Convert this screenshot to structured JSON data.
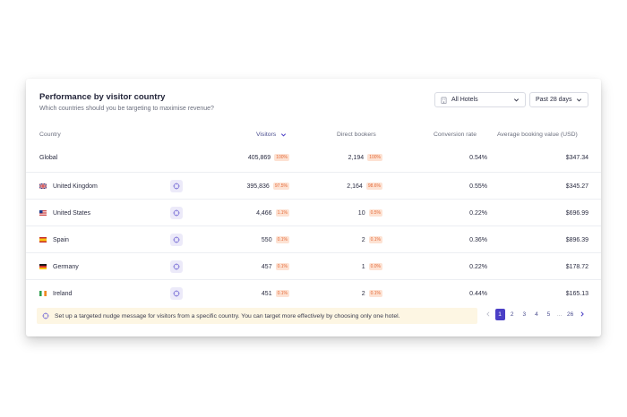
{
  "header": {
    "title": "Performance by visitor country",
    "subtitle": "Which countries should you be targeting to maximise revenue?"
  },
  "filters": {
    "hotel": "All Hotels",
    "period": "Past 28 days"
  },
  "columns": {
    "country": "Country",
    "visitors": "Visitors",
    "direct_bookers": "Direct bookers",
    "conversion_rate": "Conversion rate",
    "avg_booking_value": "Average booking value (USD)"
  },
  "global": {
    "country": "Global",
    "visitors": "405,869",
    "visitors_pct": "100%",
    "bookers": "2,194",
    "bookers_pct": "100%",
    "conversion": "0.54%",
    "avg": "$347.34"
  },
  "rows": [
    {
      "country": "United Kingdom",
      "flag": "uk-flag",
      "visitors": "395,836",
      "visitors_pct": "97.5%",
      "bookers": "2,164",
      "bookers_pct": "98.6%",
      "conversion": "0.55%",
      "avg": "$345.27"
    },
    {
      "country": "United States",
      "flag": "us-flag",
      "visitors": "4,466",
      "visitors_pct": "1.1%",
      "bookers": "10",
      "bookers_pct": "0.5%",
      "conversion": "0.22%",
      "avg": "$696.99"
    },
    {
      "country": "Spain",
      "flag": "spain-flag",
      "visitors": "550",
      "visitors_pct": "0.1%",
      "bookers": "2",
      "bookers_pct": "0.1%",
      "conversion": "0.36%",
      "avg": "$896.39"
    },
    {
      "country": "Germany",
      "flag": "germany-flag",
      "visitors": "457",
      "visitors_pct": "0.1%",
      "bookers": "1",
      "bookers_pct": "0.0%",
      "conversion": "0.22%",
      "avg": "$178.72"
    },
    {
      "country": "Ireland",
      "flag": "ireland-flag",
      "visitors": "451",
      "visitors_pct": "0.1%",
      "bookers": "2",
      "bookers_pct": "0.1%",
      "conversion": "0.44%",
      "avg": "$165.13"
    }
  ],
  "tip": "Set up a targeted nudge message for visitors from a specific country. You can target more effectively by choosing only one hotel.",
  "pagination": {
    "pages": [
      "1",
      "2",
      "3",
      "4",
      "5"
    ],
    "ellipsis": "...",
    "last": "26",
    "current": "1"
  },
  "colors": {
    "accent": "#4b3fc6",
    "badge_bg": "#fde2d3",
    "badge_text": "#e46b3a",
    "tip_bg": "#fdf6e3"
  }
}
